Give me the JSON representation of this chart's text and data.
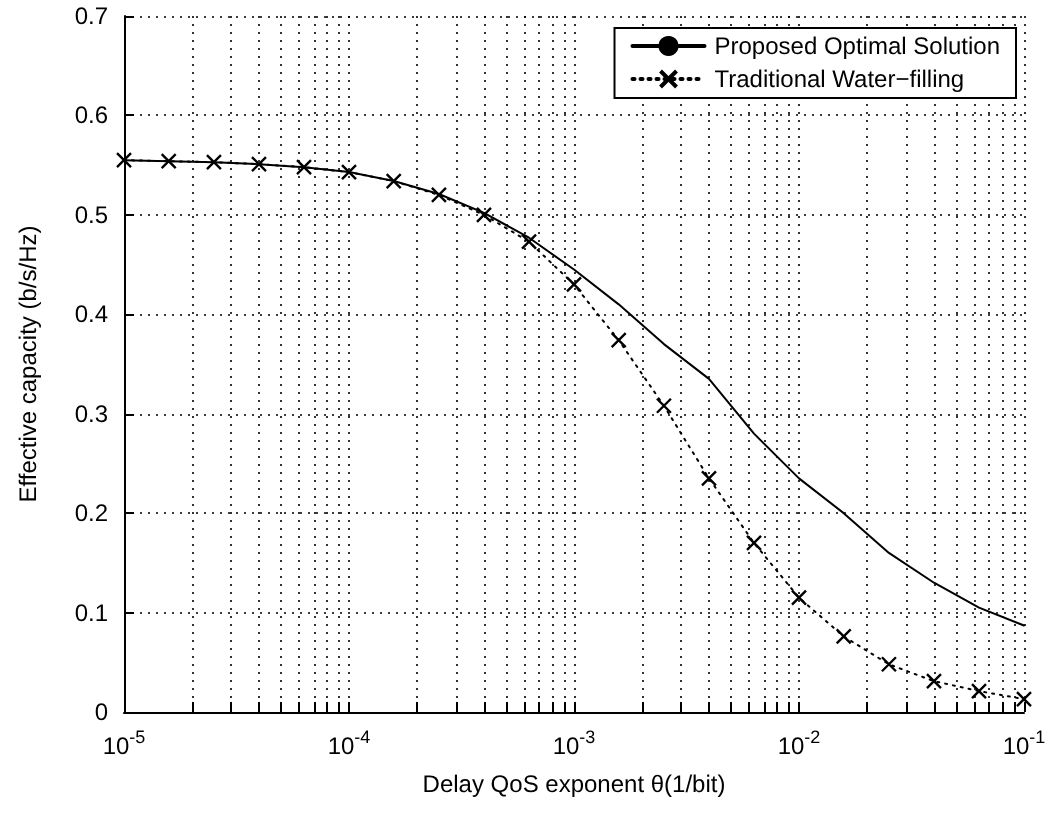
{
  "chart_data": {
    "type": "line",
    "xlabel": "Delay QoS exponent θ(1/bit)",
    "ylabel": "Effective capacity (b/s/Hz)",
    "x": [
      1e-05,
      1.58e-05,
      2.51e-05,
      3.98e-05,
      6.31e-05,
      0.0001,
      0.000158,
      0.000251,
      0.000398,
      0.000631,
      0.001,
      0.00158,
      0.00251,
      0.00398,
      0.00631,
      0.01,
      0.0158,
      0.0251,
      0.0398,
      0.0631,
      0.1
    ],
    "series": [
      {
        "name": "Proposed Optimal Solution",
        "color": "#000000",
        "marker": "none",
        "line_style": "solid",
        "values": [
          0.555,
          0.554,
          0.553,
          0.551,
          0.548,
          0.543,
          0.534,
          0.521,
          0.502,
          0.477,
          0.445,
          0.41,
          0.37,
          0.335,
          0.28,
          0.235,
          0.2,
          0.16,
          0.13,
          0.105,
          0.087
        ]
      },
      {
        "name": "Traditional Water−filling",
        "color": "#000000",
        "marker": "cross",
        "line_style": "dotted",
        "values": [
          0.555,
          0.554,
          0.553,
          0.551,
          0.548,
          0.543,
          0.534,
          0.52,
          0.5,
          0.473,
          0.43,
          0.374,
          0.308,
          0.235,
          0.17,
          0.115,
          0.076,
          0.048,
          0.031,
          0.021,
          0.013
        ]
      }
    ],
    "log": "x",
    "xlim": [
      1e-05,
      0.1
    ],
    "xticks": [
      {
        "value": 1e-05,
        "label": "10$^{-5}$"
      },
      {
        "value": 2e-05,
        "label": null
      },
      {
        "value": 3e-05,
        "label": null
      },
      {
        "value": 4e-05,
        "label": null
      },
      {
        "value": 5e-05,
        "label": null
      },
      {
        "value": 6e-05,
        "label": null
      },
      {
        "value": 7e-05,
        "label": null
      },
      {
        "value": 8e-05,
        "label": null
      },
      {
        "value": 9e-05,
        "label": null
      },
      {
        "value": 0.0001,
        "label": "10$^{-4}$"
      },
      {
        "value": 0.0002,
        "label": null
      },
      {
        "value": 0.0003,
        "label": null
      },
      {
        "value": 0.0004,
        "label": null
      },
      {
        "value": 0.0005,
        "label": null
      },
      {
        "value": 0.0006,
        "label": null
      },
      {
        "value": 0.0007,
        "label": null
      },
      {
        "value": 0.0008,
        "label": null
      },
      {
        "value": 0.0009,
        "label": null
      },
      {
        "value": 0.001,
        "label": "10$^{-3}$"
      },
      {
        "value": 0.002,
        "label": null
      },
      {
        "value": 0.003,
        "label": null
      },
      {
        "value": 0.004,
        "label": null
      },
      {
        "value": 0.005,
        "label": null
      },
      {
        "value": 0.006,
        "label": null
      },
      {
        "value": 0.007,
        "label": null
      },
      {
        "value": 0.008,
        "label": null
      },
      {
        "value": 0.009,
        "label": null
      },
      {
        "value": 0.01,
        "label": "10$^{-2}$"
      },
      {
        "value": 0.02,
        "label": null
      },
      {
        "value": 0.03,
        "label": null
      },
      {
        "value": 0.04,
        "label": null
      },
      {
        "value": 0.05,
        "label": null
      },
      {
        "value": 0.06,
        "label": null
      },
      {
        "value": 0.07,
        "label": null
      },
      {
        "value": 0.08,
        "label": null
      },
      {
        "value": 0.09,
        "label": null
      },
      {
        "value": 0.1,
        "label": "10$^{-1}$"
      }
    ],
    "ylim": [
      0,
      0.7
    ],
    "yticks": [
      0,
      0.1,
      0.2,
      0.3,
      0.4,
      0.5,
      0.6,
      0.7
    ],
    "grid": true,
    "legend": "top right"
  }
}
